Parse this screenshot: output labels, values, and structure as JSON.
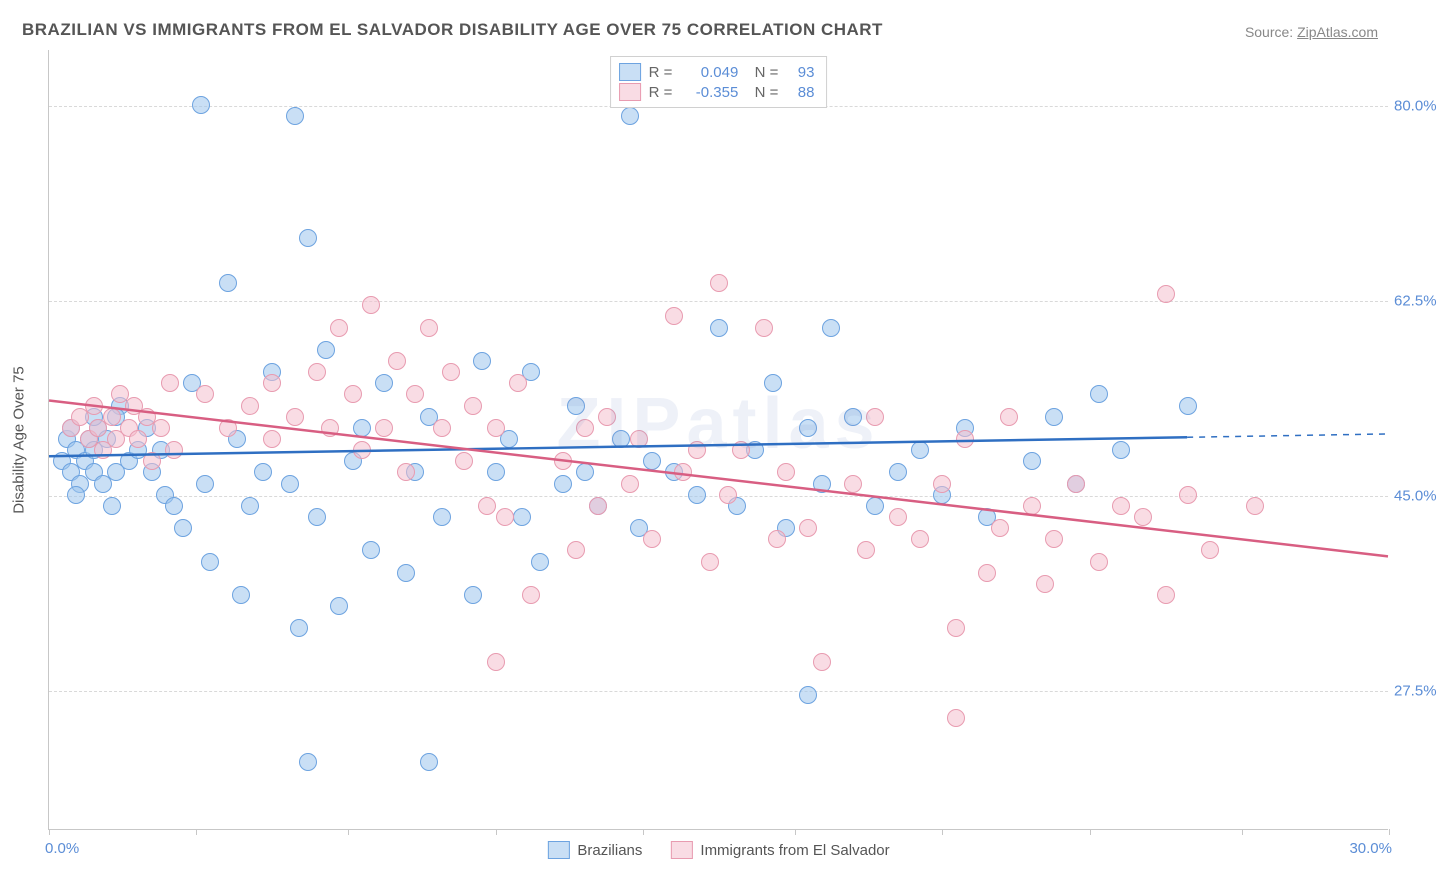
{
  "title": "BRAZILIAN VS IMMIGRANTS FROM EL SALVADOR DISABILITY AGE OVER 75 CORRELATION CHART",
  "source_prefix": "Source: ",
  "source_name": "ZipAtlas.com",
  "y_axis_title": "Disability Age Over 75",
  "watermark": "ZIPatlas",
  "chart": {
    "type": "scatter",
    "background_color": "#ffffff",
    "grid_color": "#d9d9d9",
    "axis_color": "#c7c7c7",
    "tick_label_color": "#5b8dd6",
    "xlim": [
      0,
      30
    ],
    "ylim": [
      15,
      85
    ],
    "y_ticks": [
      27.5,
      45.0,
      62.5,
      80.0
    ],
    "y_tick_labels": [
      "27.5%",
      "45.0%",
      "62.5%",
      "80.0%"
    ],
    "x_ticks": [
      0,
      3.3,
      6.7,
      10,
      13.3,
      16.7,
      20,
      23.3,
      26.7,
      30
    ],
    "x_label_start": "0.0%",
    "x_label_end": "30.0%",
    "point_radius": 9,
    "series": [
      {
        "name": "Brazilians",
        "color_border": "#6da3e0",
        "color_fill": "rgba(156,196,236,0.55)",
        "R": "0.049",
        "N": "93",
        "trend": {
          "y_at_x0": 48.5,
          "y_at_xmax": 50.5,
          "solid_until_x": 25.5,
          "line_color": "#2f6fc2",
          "line_width": 2.5
        },
        "points": [
          [
            0.3,
            48
          ],
          [
            0.4,
            50
          ],
          [
            0.5,
            47
          ],
          [
            0.6,
            49
          ],
          [
            0.5,
            51
          ],
          [
            0.7,
            46
          ],
          [
            0.8,
            48
          ],
          [
            0.9,
            50
          ],
          [
            0.6,
            45
          ],
          [
            1.0,
            47
          ],
          [
            1.0,
            49
          ],
          [
            1.1,
            51
          ],
          [
            1.2,
            46
          ],
          [
            1.3,
            50
          ],
          [
            1.5,
            47
          ],
          [
            1.0,
            52
          ],
          [
            1.4,
            44
          ],
          [
            1.8,
            48
          ],
          [
            2.0,
            49
          ],
          [
            1.6,
            53
          ],
          [
            1.5,
            52
          ],
          [
            2.2,
            51
          ],
          [
            2.3,
            47
          ],
          [
            2.5,
            49
          ],
          [
            2.6,
            45
          ],
          [
            2.8,
            44
          ],
          [
            3.0,
            42
          ],
          [
            3.2,
            55
          ],
          [
            3.4,
            80
          ],
          [
            3.5,
            46
          ],
          [
            3.6,
            39
          ],
          [
            4.0,
            64
          ],
          [
            4.2,
            50
          ],
          [
            4.5,
            44
          ],
          [
            4.8,
            47
          ],
          [
            5.0,
            56
          ],
          [
            4.3,
            36
          ],
          [
            5.4,
            46
          ],
          [
            5.5,
            79
          ],
          [
            5.6,
            33
          ],
          [
            5.8,
            68
          ],
          [
            6.0,
            43
          ],
          [
            6.2,
            58
          ],
          [
            6.5,
            35
          ],
          [
            6.8,
            48
          ],
          [
            7.0,
            51
          ],
          [
            7.2,
            40
          ],
          [
            7.5,
            55
          ],
          [
            5.8,
            21
          ],
          [
            8.0,
            38
          ],
          [
            8.2,
            47
          ],
          [
            8.5,
            52
          ],
          [
            8.8,
            43
          ],
          [
            8.5,
            21
          ],
          [
            9.5,
            36
          ],
          [
            9.7,
            57
          ],
          [
            10.0,
            47
          ],
          [
            10.3,
            50
          ],
          [
            10.6,
            43
          ],
          [
            10.8,
            56
          ],
          [
            11.0,
            39
          ],
          [
            11.5,
            46
          ],
          [
            11.8,
            53
          ],
          [
            12.0,
            47
          ],
          [
            12.3,
            44
          ],
          [
            12.8,
            50
          ],
          [
            13.0,
            79
          ],
          [
            13.2,
            42
          ],
          [
            13.5,
            48
          ],
          [
            14.0,
            47
          ],
          [
            14.5,
            45
          ],
          [
            15.0,
            60
          ],
          [
            15.4,
            44
          ],
          [
            15.8,
            49
          ],
          [
            16.2,
            55
          ],
          [
            16.5,
            42
          ],
          [
            17.0,
            51
          ],
          [
            17.3,
            46
          ],
          [
            17.5,
            60
          ],
          [
            18.0,
            52
          ],
          [
            18.5,
            44
          ],
          [
            19.0,
            47
          ],
          [
            19.5,
            49
          ],
          [
            20.0,
            45
          ],
          [
            20.5,
            51
          ],
          [
            21.0,
            43
          ],
          [
            17.0,
            27
          ],
          [
            22.0,
            48
          ],
          [
            22.5,
            52
          ],
          [
            23.0,
            46
          ],
          [
            23.5,
            54
          ],
          [
            24.0,
            49
          ],
          [
            25.5,
            53
          ]
        ]
      },
      {
        "name": "Immigrants from El Salvador",
        "color_border": "#e89bb0",
        "color_fill": "rgba(244,192,206,0.55)",
        "R": "-0.355",
        "N": "88",
        "trend": {
          "y_at_x0": 53.5,
          "y_at_xmax": 39.5,
          "solid_until_x": 30,
          "line_color": "#d85e82",
          "line_width": 2.5
        },
        "points": [
          [
            0.5,
            51
          ],
          [
            0.7,
            52
          ],
          [
            0.9,
            50
          ],
          [
            1.0,
            53
          ],
          [
            1.1,
            51
          ],
          [
            1.2,
            49
          ],
          [
            1.4,
            52
          ],
          [
            1.5,
            50
          ],
          [
            1.6,
            54
          ],
          [
            1.8,
            51
          ],
          [
            1.9,
            53
          ],
          [
            2.0,
            50
          ],
          [
            2.2,
            52
          ],
          [
            2.3,
            48
          ],
          [
            2.5,
            51
          ],
          [
            2.7,
            55
          ],
          [
            2.8,
            49
          ],
          [
            3.5,
            54
          ],
          [
            4.0,
            51
          ],
          [
            4.5,
            53
          ],
          [
            5.0,
            50
          ],
          [
            5.0,
            55
          ],
          [
            5.5,
            52
          ],
          [
            6.0,
            56
          ],
          [
            6.3,
            51
          ],
          [
            6.5,
            60
          ],
          [
            6.8,
            54
          ],
          [
            7.0,
            49
          ],
          [
            7.2,
            62
          ],
          [
            7.5,
            51
          ],
          [
            7.8,
            57
          ],
          [
            8.0,
            47
          ],
          [
            8.2,
            54
          ],
          [
            8.5,
            60
          ],
          [
            8.8,
            51
          ],
          [
            9.0,
            56
          ],
          [
            9.3,
            48
          ],
          [
            9.5,
            53
          ],
          [
            9.8,
            44
          ],
          [
            10.0,
            51
          ],
          [
            10.2,
            43
          ],
          [
            10.5,
            55
          ],
          [
            10.8,
            36
          ],
          [
            10.0,
            30
          ],
          [
            11.5,
            48
          ],
          [
            11.8,
            40
          ],
          [
            12.0,
            51
          ],
          [
            12.3,
            44
          ],
          [
            12.5,
            52
          ],
          [
            13.0,
            46
          ],
          [
            13.2,
            50
          ],
          [
            13.5,
            41
          ],
          [
            14.0,
            61
          ],
          [
            14.2,
            47
          ],
          [
            14.5,
            49
          ],
          [
            14.8,
            39
          ],
          [
            15.0,
            64
          ],
          [
            15.2,
            45
          ],
          [
            15.5,
            49
          ],
          [
            16.0,
            60
          ],
          [
            16.3,
            41
          ],
          [
            16.5,
            47
          ],
          [
            17.0,
            42
          ],
          [
            17.3,
            30
          ],
          [
            18.0,
            46
          ],
          [
            18.3,
            40
          ],
          [
            18.5,
            52
          ],
          [
            19.0,
            43
          ],
          [
            19.5,
            41
          ],
          [
            20.0,
            46
          ],
          [
            20.3,
            33
          ],
          [
            20.5,
            50
          ],
          [
            20.3,
            25
          ],
          [
            21.0,
            38
          ],
          [
            21.3,
            42
          ],
          [
            21.5,
            52
          ],
          [
            22.0,
            44
          ],
          [
            22.3,
            37
          ],
          [
            22.5,
            41
          ],
          [
            23.0,
            46
          ],
          [
            23.5,
            39
          ],
          [
            24.0,
            44
          ],
          [
            24.5,
            43
          ],
          [
            25.0,
            63
          ],
          [
            25.5,
            45
          ],
          [
            26.0,
            40
          ],
          [
            27.0,
            44
          ],
          [
            25.0,
            36
          ]
        ]
      }
    ]
  }
}
